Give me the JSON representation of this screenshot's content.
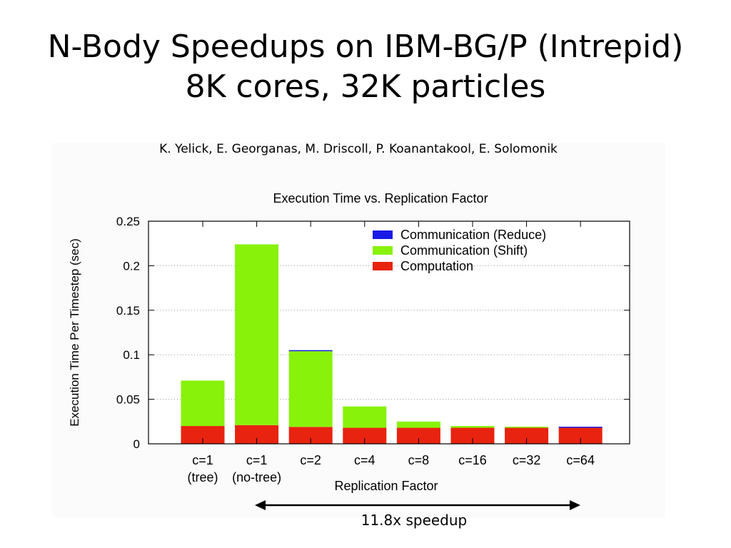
{
  "slide": {
    "title_line1": "N-Body Speedups on IBM-BG/P (Intrepid)",
    "title_line2": "8K cores, 32K particles",
    "authors": "K. Yelick, E. Georganas, M. Driscoll, P. Koanantakool, E. Solomonik",
    "speedup_label": "11.8x speedup"
  },
  "chart_data": {
    "type": "bar",
    "stacked": true,
    "title": "Execution Time vs. Replication Factor",
    "xlabel": "Replication Factor",
    "ylabel": "Execution Time Per Timestep (sec)",
    "ylim": [
      0,
      0.25
    ],
    "yticks": [
      "0",
      "0.05",
      "0.1",
      "0.15",
      "0.2",
      "0.25"
    ],
    "ytick_values": [
      0,
      0.05,
      0.1,
      0.15,
      0.2,
      0.25
    ],
    "grid": true,
    "legend_position": "top-right",
    "categories": [
      [
        "c=1",
        "(tree)"
      ],
      [
        "c=1",
        "(no-tree)"
      ],
      [
        "c=2"
      ],
      [
        "c=4"
      ],
      [
        "c=8"
      ],
      [
        "c=16"
      ],
      [
        "c=32"
      ],
      [
        "c=64"
      ]
    ],
    "series": [
      {
        "name": "Computation",
        "color": "#e8230f",
        "values": [
          0.02,
          0.021,
          0.019,
          0.018,
          0.018,
          0.018,
          0.018,
          0.018
        ]
      },
      {
        "name": "Communication (Shift)",
        "color": "#88f20a",
        "values": [
          0.051,
          0.203,
          0.085,
          0.024,
          0.007,
          0.002,
          0.001,
          0.0
        ]
      },
      {
        "name": "Communication (Reduce)",
        "color": "#1a1ae6",
        "values": [
          0.0,
          0.0,
          0.001,
          0.0,
          0.0,
          0.0,
          0.0,
          0.001
        ]
      }
    ],
    "legend_order": [
      "Communication (Reduce)",
      "Communication (Shift)",
      "Computation"
    ]
  }
}
